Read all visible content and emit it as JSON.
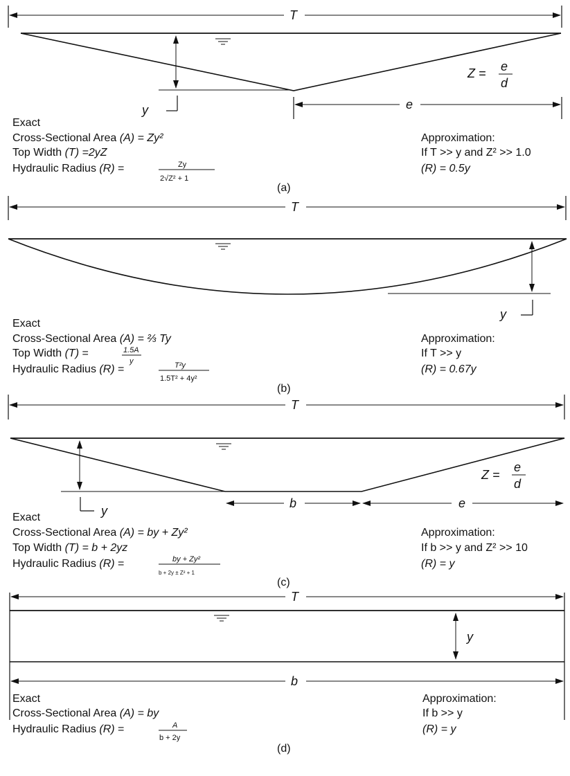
{
  "labels": {
    "T": "T",
    "y": "y",
    "e": "e",
    "b": "b",
    "Z_eq": "Z =",
    "e_num": "e",
    "d_den": "d",
    "exact": "Exact",
    "approximation": "Approximation:",
    "area": "Cross-Sectional Area",
    "top_width": "Top Width",
    "hyd_radius": "Hydraulic Radius",
    "A_sym": "(A)",
    "T_sym": "(T)",
    "R_sym": "(R)"
  },
  "panel_a": {
    "caption": "(a)",
    "area_value": "= Zy²",
    "top_width_value": "=2yZ",
    "radius_num": "Zy",
    "radius_den": "2√Z² + 1",
    "approx_cond": "If T >> y and Z² >> 1.0",
    "approx_result": "(R) = 0.5y"
  },
  "panel_b": {
    "caption": "(b)",
    "area_value": "= ⅔ Ty",
    "top_width_num": "1.5A",
    "top_width_den": "y",
    "radius_num": "T²y",
    "radius_den": "1.5T² + 4y²",
    "approx_cond": "If T >> y",
    "approx_result": "(R) = 0.67y"
  },
  "panel_c": {
    "caption": "(c)",
    "area_value": "= by + Zy²",
    "top_width_value": "= b + 2yz",
    "radius_num": "by + Zy²",
    "radius_den": "b + 2y ± Z² + 1",
    "approx_cond": "If b >> y and Z² >> 10",
    "approx_result": "(R) = y"
  },
  "panel_d": {
    "caption": "(d)",
    "area_value": "= by",
    "radius_num": "A",
    "radius_den": "b + 2y",
    "approx_cond": "If b >> y",
    "approx_result": "(R) = y"
  }
}
